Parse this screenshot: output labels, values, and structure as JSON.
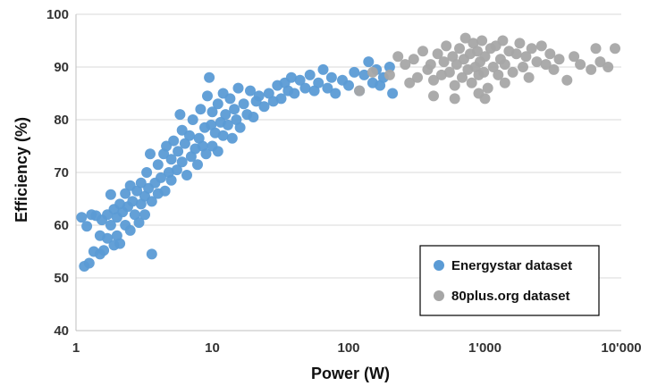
{
  "chart_data": {
    "type": "scatter",
    "xlabel": "Power (W)",
    "ylabel": "Efficiency (%)",
    "x_scale": "log",
    "xlim": [
      1,
      10000
    ],
    "ylim": [
      40,
      100
    ],
    "x_ticks": [
      1,
      10,
      100,
      1000,
      10000
    ],
    "x_tick_labels": [
      "1",
      "10",
      "100",
      "1'000",
      "10'000"
    ],
    "y_ticks": [
      40,
      50,
      60,
      70,
      80,
      90,
      100
    ],
    "y_tick_labels": [
      "40",
      "50",
      "60",
      "70",
      "80",
      "90",
      "100"
    ],
    "grid": "horizontal",
    "legend_position": "bottom-right",
    "series": [
      {
        "name": "Energystar dataset",
        "color": "#5b9bd5",
        "points": [
          [
            1.1,
            61.5
          ],
          [
            1.15,
            52.2
          ],
          [
            1.2,
            59.8
          ],
          [
            1.25,
            52.8
          ],
          [
            1.3,
            62.0
          ],
          [
            1.35,
            55.0
          ],
          [
            1.4,
            61.8
          ],
          [
            1.5,
            58.0
          ],
          [
            1.5,
            54.5
          ],
          [
            1.55,
            61.0
          ],
          [
            1.6,
            55.2
          ],
          [
            1.7,
            62.0
          ],
          [
            1.7,
            57.5
          ],
          [
            1.8,
            65.8
          ],
          [
            1.8,
            60.0
          ],
          [
            1.9,
            63.0
          ],
          [
            1.9,
            56.2
          ],
          [
            2.0,
            61.5
          ],
          [
            2.0,
            58.0
          ],
          [
            2.1,
            64.0
          ],
          [
            2.1,
            56.5
          ],
          [
            2.2,
            62.5
          ],
          [
            2.3,
            60.0
          ],
          [
            2.3,
            66.0
          ],
          [
            2.4,
            63.5
          ],
          [
            2.5,
            59.0
          ],
          [
            2.5,
            67.5
          ],
          [
            2.6,
            64.5
          ],
          [
            2.7,
            62.0
          ],
          [
            2.8,
            66.5
          ],
          [
            2.9,
            60.5
          ],
          [
            3.0,
            68.0
          ],
          [
            3.0,
            64.0
          ],
          [
            3.2,
            65.5
          ],
          [
            3.2,
            62.0
          ],
          [
            3.3,
            70.0
          ],
          [
            3.4,
            67.0
          ],
          [
            3.5,
            73.5
          ],
          [
            3.6,
            64.5
          ],
          [
            3.6,
            54.5
          ],
          [
            3.8,
            68.0
          ],
          [
            4.0,
            66.0
          ],
          [
            4.0,
            71.5
          ],
          [
            4.2,
            69.0
          ],
          [
            4.4,
            73.5
          ],
          [
            4.5,
            66.5
          ],
          [
            4.6,
            75.0
          ],
          [
            4.8,
            70.0
          ],
          [
            5.0,
            68.5
          ],
          [
            5.0,
            72.5
          ],
          [
            5.2,
            76.0
          ],
          [
            5.5,
            70.5
          ],
          [
            5.6,
            74.0
          ],
          [
            5.8,
            81.0
          ],
          [
            6.0,
            72.0
          ],
          [
            6.0,
            78.0
          ],
          [
            6.3,
            75.5
          ],
          [
            6.5,
            69.5
          ],
          [
            6.8,
            77.0
          ],
          [
            7.0,
            73.0
          ],
          [
            7.2,
            80.0
          ],
          [
            7.5,
            74.5
          ],
          [
            7.8,
            71.5
          ],
          [
            8.0,
            76.5
          ],
          [
            8.2,
            82.0
          ],
          [
            8.5,
            75.0
          ],
          [
            8.8,
            78.5
          ],
          [
            9.0,
            73.5
          ],
          [
            9.2,
            84.5
          ],
          [
            9.5,
            88.0
          ],
          [
            9.8,
            79.0
          ],
          [
            10.0,
            75.0
          ],
          [
            10.0,
            81.5
          ],
          [
            10.5,
            77.5
          ],
          [
            11.0,
            83.0
          ],
          [
            11.0,
            74.0
          ],
          [
            11.5,
            79.5
          ],
          [
            12.0,
            85.0
          ],
          [
            12.0,
            77.0
          ],
          [
            12.5,
            81.0
          ],
          [
            13.0,
            79.0
          ],
          [
            13.5,
            84.0
          ],
          [
            14.0,
            76.5
          ],
          [
            14.5,
            82.0
          ],
          [
            15.0,
            80.0
          ],
          [
            15.5,
            86.0
          ],
          [
            16.0,
            78.5
          ],
          [
            17.0,
            83.0
          ],
          [
            18.0,
            81.0
          ],
          [
            19.0,
            85.5
          ],
          [
            20.0,
            80.5
          ],
          [
            21.0,
            83.5
          ],
          [
            22.0,
            84.5
          ],
          [
            24.0,
            82.5
          ],
          [
            26.0,
            85.0
          ],
          [
            28.0,
            83.5
          ],
          [
            30.0,
            86.5
          ],
          [
            32.0,
            84.0
          ],
          [
            34.0,
            87.0
          ],
          [
            36.0,
            85.5
          ],
          [
            38.0,
            88.0
          ],
          [
            40.0,
            85.0
          ],
          [
            44.0,
            87.5
          ],
          [
            48.0,
            86.0
          ],
          [
            52.0,
            88.5
          ],
          [
            56.0,
            85.5
          ],
          [
            60.0,
            87.0
          ],
          [
            65.0,
            89.5
          ],
          [
            70.0,
            86.0
          ],
          [
            75.0,
            88.0
          ],
          [
            80.0,
            85.0
          ],
          [
            90.0,
            87.5
          ],
          [
            100.0,
            86.5
          ],
          [
            110.0,
            89.0
          ],
          [
            120.0,
            85.5
          ],
          [
            130.0,
            88.5
          ],
          [
            140.0,
            91.0
          ],
          [
            150.0,
            87.0
          ],
          [
            160.0,
            89.5
          ],
          [
            170.0,
            86.5
          ],
          [
            180.0,
            88.0
          ],
          [
            200.0,
            90.0
          ],
          [
            210.0,
            85.0
          ]
        ]
      },
      {
        "name": "80plus.org dataset",
        "color": "#a6a6a6",
        "points": [
          [
            120.0,
            85.5
          ],
          [
            150.0,
            89.0
          ],
          [
            200.0,
            88.5
          ],
          [
            230.0,
            92.0
          ],
          [
            260.0,
            90.5
          ],
          [
            280.0,
            87.0
          ],
          [
            300.0,
            91.5
          ],
          [
            320.0,
            88.0
          ],
          [
            350.0,
            93.0
          ],
          [
            380.0,
            89.5
          ],
          [
            400.0,
            90.5
          ],
          [
            420.0,
            87.5
          ],
          [
            450.0,
            92.5
          ],
          [
            480.0,
            88.5
          ],
          [
            500.0,
            91.0
          ],
          [
            520.0,
            94.0
          ],
          [
            550.0,
            89.0
          ],
          [
            580.0,
            92.0
          ],
          [
            600.0,
            86.5
          ],
          [
            620.0,
            90.5
          ],
          [
            650.0,
            93.5
          ],
          [
            680.0,
            88.0
          ],
          [
            700.0,
            91.5
          ],
          [
            720.0,
            95.5
          ],
          [
            750.0,
            89.5
          ],
          [
            780.0,
            92.5
          ],
          [
            800.0,
            87.0
          ],
          [
            820.0,
            94.5
          ],
          [
            850.0,
            90.0
          ],
          [
            880.0,
            93.0
          ],
          [
            900.0,
            88.5
          ],
          [
            920.0,
            91.0
          ],
          [
            950.0,
            95.0
          ],
          [
            980.0,
            89.0
          ],
          [
            1000.0,
            92.0
          ],
          [
            1050.0,
            86.0
          ],
          [
            1100.0,
            93.5
          ],
          [
            1150.0,
            90.0
          ],
          [
            1200.0,
            94.0
          ],
          [
            1250.0,
            88.5
          ],
          [
            1300.0,
            91.5
          ],
          [
            1350.0,
            95.0
          ],
          [
            1400.0,
            90.5
          ],
          [
            1500.0,
            93.0
          ],
          [
            1600.0,
            89.0
          ],
          [
            1700.0,
            92.5
          ],
          [
            1800.0,
            94.5
          ],
          [
            1900.0,
            90.0
          ],
          [
            2000.0,
            92.0
          ],
          [
            2100.0,
            88.0
          ],
          [
            2200.0,
            93.5
          ],
          [
            2400.0,
            91.0
          ],
          [
            2600.0,
            94.0
          ],
          [
            2800.0,
            90.5
          ],
          [
            3000.0,
            92.5
          ],
          [
            3200.0,
            89.5
          ],
          [
            3500.0,
            91.5
          ],
          [
            4000.0,
            87.5
          ],
          [
            4500.0,
            92.0
          ],
          [
            5000.0,
            90.5
          ],
          [
            6000.0,
            89.5
          ],
          [
            6500.0,
            93.5
          ],
          [
            7000.0,
            91.0
          ],
          [
            8000.0,
            90.0
          ],
          [
            9000.0,
            93.5
          ],
          [
            420.0,
            84.5
          ],
          [
            600.0,
            84.0
          ],
          [
            900.0,
            85.0
          ],
          [
            1000.0,
            84.0
          ],
          [
            1400.0,
            87.0
          ]
        ]
      }
    ]
  }
}
